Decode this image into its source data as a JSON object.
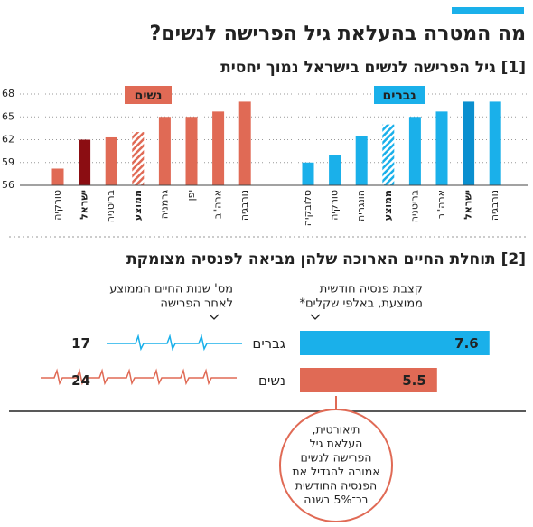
{
  "title": "מה המטרה בהעלאת גיל הפרישה לנשים?",
  "chart_data": [
    {
      "type": "bar",
      "title": "[1] גיל הפרישה לנשים בישראל נמוך יחסית",
      "ylim": [
        56,
        68
      ],
      "yticks": [
        56,
        59,
        62,
        65,
        68
      ],
      "grid": true,
      "groups": [
        {
          "name": "נשים",
          "color": "#e06a55",
          "categories": [
            "טורקיה",
            "ישראל",
            "בריטניה",
            "ממוצע",
            "גרמניה",
            "יפן",
            "ארה\"ב",
            "נורבגיה"
          ],
          "values": [
            58.2,
            62,
            62.3,
            63,
            65,
            65,
            65.7,
            67
          ],
          "colors": [
            "#e06a55",
            "#8b0d12",
            "#e06a55",
            "hatch",
            "#e06a55",
            "#e06a55",
            "#e06a55",
            "#e06a55"
          ]
        },
        {
          "name": "גברים",
          "color": "#1ab0ea",
          "categories": [
            "סלובקיה",
            "טורקיה",
            "הונגריה",
            "ממוצע",
            "בריטניה",
            "ארה\"ב",
            "ישראל",
            "נורבגיה"
          ],
          "values": [
            59,
            60,
            62.5,
            64,
            65,
            65.7,
            67,
            67
          ],
          "colors": [
            "#1ab0ea",
            "#1ab0ea",
            "#1ab0ea",
            "hatch",
            "#1ab0ea",
            "#1ab0ea",
            "#0a8fcf",
            "#1ab0ea"
          ]
        }
      ]
    },
    {
      "type": "hbar",
      "title": "[2] תוחלת החיים הארוכה שלהן מביאה לפנסיה מצומקת",
      "years_label": [
        "מס' שנות החיים הממוצע",
        "לאחר הפרישה"
      ],
      "pension_label": [
        "קצבת פנסיה חודשית",
        "ממוצעת, באלפי שקלים*"
      ],
      "series": [
        {
          "name": "גברים",
          "color": "#1ab0ea",
          "values": [
            7.6
          ],
          "years": 17
        },
        {
          "name": "נשים",
          "color": "#e06a55",
          "values": [
            5.5
          ],
          "years": 24
        }
      ]
    }
  ],
  "note": [
    "תיאורטית,",
    "העלאת גיל",
    "הפרישה לנשים",
    "אמורה להגדיל את",
    "הפנסיה החודשית",
    "בכ־5% בשנה"
  ]
}
